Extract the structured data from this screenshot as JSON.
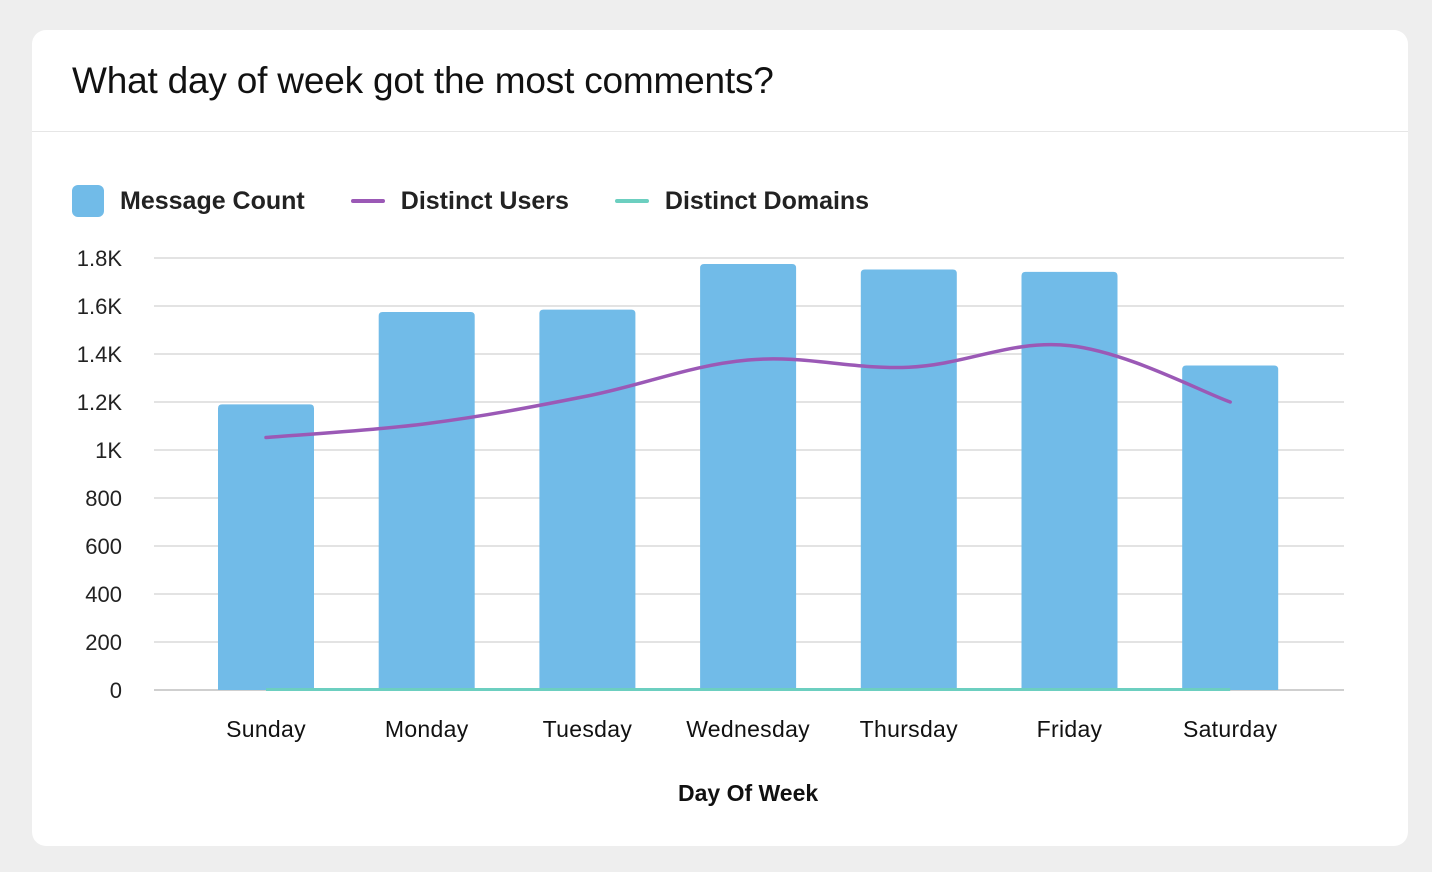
{
  "card": {
    "title": "What day of week got the most comments?"
  },
  "legend": [
    {
      "label": "Message Count",
      "color": "#71bbe8",
      "kind": "box"
    },
    {
      "label": "Distinct Users",
      "color": "#9b59b6",
      "kind": "line"
    },
    {
      "label": "Distinct Domains",
      "color": "#6ccfc0",
      "kind": "line"
    }
  ],
  "chart_data": {
    "type": "bar",
    "title": "What day of week got the most comments?",
    "xlabel": "Day Of Week",
    "ylabel": "",
    "categories": [
      "Sunday",
      "Monday",
      "Tuesday",
      "Wednesday",
      "Thursday",
      "Friday",
      "Saturday"
    ],
    "ylim": [
      0,
      1800
    ],
    "yticks": [
      0,
      200,
      400,
      600,
      800,
      1000,
      1200,
      1400,
      1600,
      1800
    ],
    "ytick_labels": [
      "0",
      "200",
      "400",
      "600",
      "800",
      "1K",
      "1.2K",
      "1.4K",
      "1.6K",
      "1.8K"
    ],
    "grid": true,
    "legend_position": "top-left",
    "series": [
      {
        "name": "Message Count",
        "type": "bar",
        "color": "#71bbe8",
        "values": [
          1190,
          1575,
          1585,
          1775,
          1752,
          1742,
          1352
        ]
      },
      {
        "name": "Distinct Users",
        "type": "line",
        "smooth": true,
        "color": "#9b59b6",
        "values": [
          1052,
          1110,
          1225,
          1375,
          1345,
          1435,
          1200
        ]
      },
      {
        "name": "Distinct Domains",
        "type": "line",
        "color": "#6ccfc0",
        "values": [
          2,
          2,
          2,
          2,
          2,
          2,
          2
        ]
      }
    ]
  }
}
